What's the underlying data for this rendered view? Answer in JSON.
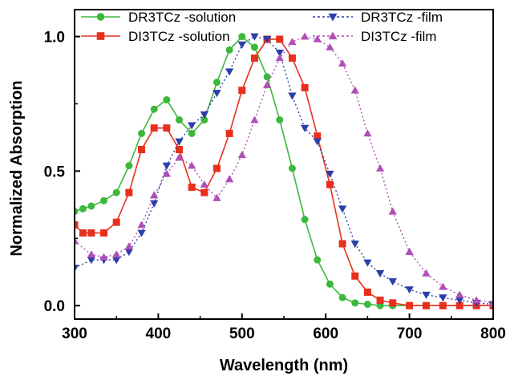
{
  "chart_data": {
    "type": "line",
    "xlabel": "Wavelength (nm)",
    "ylabel": "Normalized Absorption",
    "xlim": [
      300,
      800
    ],
    "ylim": [
      -0.05,
      1.1
    ],
    "x_ticks": [
      300,
      400,
      500,
      600,
      700,
      800
    ],
    "y_ticks": [
      0.0,
      0.5,
      1.0
    ],
    "y_tick_labels": [
      "0.0",
      "0.5",
      "1.0"
    ],
    "grid": false,
    "legend_position": "top",
    "series": [
      {
        "name": "DR3TCz  -solution",
        "color": "#3cb83c",
        "marker": "circle",
        "line_style": "solid",
        "points": [
          [
            300,
            0.35
          ],
          [
            310,
            0.36
          ],
          [
            320,
            0.37
          ],
          [
            335,
            0.39
          ],
          [
            350,
            0.42
          ],
          [
            365,
            0.52
          ],
          [
            380,
            0.64
          ],
          [
            395,
            0.73
          ],
          [
            410,
            0.765
          ],
          [
            425,
            0.69
          ],
          [
            440,
            0.64
          ],
          [
            455,
            0.69
          ],
          [
            470,
            0.83
          ],
          [
            485,
            0.95
          ],
          [
            500,
            1.0
          ],
          [
            515,
            0.96
          ],
          [
            530,
            0.85
          ],
          [
            545,
            0.69
          ],
          [
            560,
            0.51
          ],
          [
            575,
            0.32
          ],
          [
            590,
            0.17
          ],
          [
            605,
            0.08
          ],
          [
            620,
            0.03
          ],
          [
            635,
            0.01
          ],
          [
            650,
            0.005
          ],
          [
            665,
            0.0
          ],
          [
            680,
            0.0
          ],
          [
            700,
            0.0
          ],
          [
            720,
            0.0
          ],
          [
            740,
            0.0
          ],
          [
            760,
            0.0
          ],
          [
            780,
            0.0
          ],
          [
            800,
            0.0
          ]
        ]
      },
      {
        "name": "DI3TCz   -solution",
        "color": "#e8301c",
        "marker": "square",
        "line_style": "solid",
        "points": [
          [
            300,
            0.3
          ],
          [
            310,
            0.27
          ],
          [
            320,
            0.27
          ],
          [
            335,
            0.27
          ],
          [
            350,
            0.31
          ],
          [
            365,
            0.42
          ],
          [
            380,
            0.58
          ],
          [
            395,
            0.66
          ],
          [
            410,
            0.66
          ],
          [
            425,
            0.58
          ],
          [
            440,
            0.44
          ],
          [
            455,
            0.42
          ],
          [
            470,
            0.51
          ],
          [
            485,
            0.64
          ],
          [
            500,
            0.8
          ],
          [
            515,
            0.92
          ],
          [
            530,
            0.99
          ],
          [
            545,
            0.99
          ],
          [
            560,
            0.92
          ],
          [
            575,
            0.81
          ],
          [
            590,
            0.63
          ],
          [
            605,
            0.45
          ],
          [
            620,
            0.23
          ],
          [
            635,
            0.11
          ],
          [
            650,
            0.05
          ],
          [
            665,
            0.02
          ],
          [
            680,
            0.01
          ],
          [
            700,
            0.0
          ],
          [
            720,
            0.0
          ],
          [
            740,
            0.0
          ],
          [
            760,
            0.0
          ],
          [
            780,
            0.0
          ],
          [
            800,
            0.0
          ]
        ]
      },
      {
        "name": "DR3TCz -film",
        "color": "#2a3fa8",
        "marker": "triangle-down",
        "line_style": "dotted",
        "points": [
          [
            300,
            0.14
          ],
          [
            320,
            0.17
          ],
          [
            335,
            0.17
          ],
          [
            350,
            0.17
          ],
          [
            365,
            0.2
          ],
          [
            380,
            0.27
          ],
          [
            395,
            0.38
          ],
          [
            410,
            0.52
          ],
          [
            425,
            0.61
          ],
          [
            440,
            0.67
          ],
          [
            455,
            0.71
          ],
          [
            470,
            0.79
          ],
          [
            485,
            0.87
          ],
          [
            500,
            0.97
          ],
          [
            515,
            1.0
          ],
          [
            530,
            0.99
          ],
          [
            545,
            0.94
          ],
          [
            560,
            0.78
          ],
          [
            575,
            0.66
          ],
          [
            590,
            0.61
          ],
          [
            605,
            0.49
          ],
          [
            620,
            0.36
          ],
          [
            635,
            0.23
          ],
          [
            650,
            0.16
          ],
          [
            665,
            0.12
          ],
          [
            680,
            0.09
          ],
          [
            700,
            0.06
          ],
          [
            720,
            0.04
          ],
          [
            740,
            0.03
          ],
          [
            760,
            0.02
          ],
          [
            780,
            0.01
          ],
          [
            800,
            0.005
          ]
        ]
      },
      {
        "name": "DI3TCz  -film",
        "color": "#b04fb8",
        "marker": "triangle-up",
        "line_style": "dotted",
        "points": [
          [
            300,
            0.24
          ],
          [
            320,
            0.19
          ],
          [
            335,
            0.18
          ],
          [
            350,
            0.19
          ],
          [
            365,
            0.22
          ],
          [
            380,
            0.3
          ],
          [
            395,
            0.41
          ],
          [
            410,
            0.49
          ],
          [
            425,
            0.55
          ],
          [
            440,
            0.52
          ],
          [
            455,
            0.45
          ],
          [
            470,
            0.4
          ],
          [
            485,
            0.47
          ],
          [
            500,
            0.56
          ],
          [
            515,
            0.69
          ],
          [
            530,
            0.82
          ],
          [
            545,
            0.92
          ],
          [
            560,
            0.98
          ],
          [
            575,
            1.0
          ],
          [
            590,
            0.99
          ],
          [
            605,
            0.96
          ],
          [
            620,
            0.9
          ],
          [
            635,
            0.8
          ],
          [
            650,
            0.64
          ],
          [
            665,
            0.51
          ],
          [
            680,
            0.35
          ],
          [
            700,
            0.2
          ],
          [
            720,
            0.12
          ],
          [
            740,
            0.07
          ],
          [
            760,
            0.04
          ],
          [
            780,
            0.02
          ],
          [
            800,
            0.01
          ]
        ]
      }
    ]
  }
}
